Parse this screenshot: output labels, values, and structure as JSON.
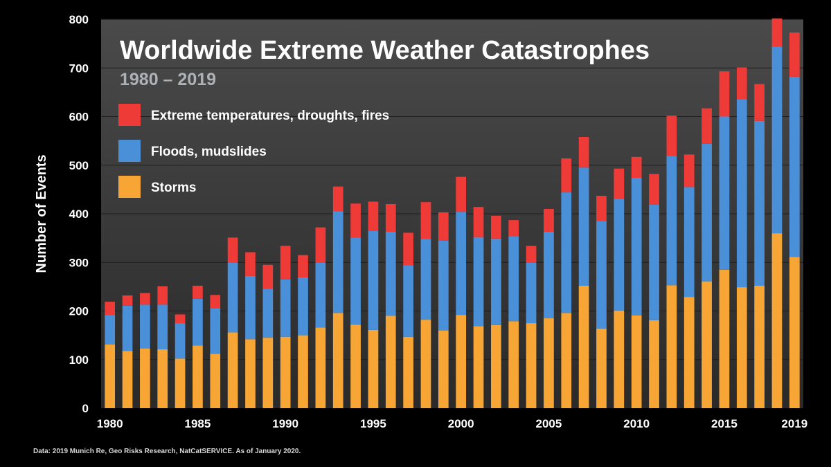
{
  "colors": {
    "background": "#000000",
    "plot_gradient_top": "#4a4a4a",
    "plot_gradient_bottom": "#2a2a2a",
    "gridline": "#1e1e1e",
    "storms": "#f7a535",
    "floods": "#4a90d9",
    "extreme": "#ee3b37"
  },
  "source_note": "Data: 2019 Munich Re, Geo Risks Research, NatCatSERVICE. As of January 2020.",
  "chart_data": {
    "type": "bar",
    "stacked": true,
    "title": "Worldwide Extreme Weather Catastrophes",
    "subtitle": "1980 – 2019",
    "xlabel": "",
    "ylabel": "Number of Events",
    "ylim": [
      0,
      800
    ],
    "yticks": [
      0,
      100,
      200,
      300,
      400,
      500,
      600,
      700,
      800
    ],
    "xtick_labels": [
      "1980",
      "1985",
      "1990",
      "1995",
      "2000",
      "2005",
      "2010",
      "2015",
      "2019"
    ],
    "grid": true,
    "legend_position": "top-left",
    "categories": [
      "1980",
      "1981",
      "1982",
      "1983",
      "1984",
      "1985",
      "1986",
      "1987",
      "1988",
      "1989",
      "1990",
      "1991",
      "1992",
      "1993",
      "1994",
      "1995",
      "1996",
      "1997",
      "1998",
      "1999",
      "2000",
      "2001",
      "2002",
      "2003",
      "2004",
      "2005",
      "2006",
      "2007",
      "2008",
      "2009",
      "2010",
      "2011",
      "2012",
      "2013",
      "2014",
      "2015",
      "2016",
      "2017",
      "2018",
      "2019"
    ],
    "series": [
      {
        "name": "Storms",
        "color_key": "storms",
        "values": [
          131,
          118,
          123,
          121,
          102,
          129,
          112,
          156,
          142,
          145,
          147,
          150,
          166,
          196,
          172,
          161,
          190,
          147,
          182,
          160,
          192,
          169,
          171,
          179,
          175,
          185,
          196,
          252,
          164,
          201,
          191,
          181,
          253,
          229,
          261,
          285,
          249,
          252,
          360,
          311
        ]
      },
      {
        "name": "Floods, mudslides",
        "color_key": "floods",
        "values": [
          61,
          93,
          90,
          92,
          73,
          96,
          94,
          144,
          130,
          101,
          118,
          119,
          134,
          209,
          179,
          204,
          173,
          147,
          166,
          185,
          212,
          183,
          178,
          175,
          125,
          178,
          248,
          243,
          221,
          230,
          283,
          238,
          266,
          226,
          283,
          315,
          387,
          339,
          384,
          371
        ]
      },
      {
        "name": "Extreme temperatures, droughts, fires",
        "color_key": "extreme",
        "values": [
          27,
          21,
          24,
          38,
          18,
          27,
          27,
          51,
          49,
          49,
          69,
          46,
          72,
          51,
          70,
          60,
          57,
          67,
          76,
          58,
          72,
          62,
          47,
          33,
          34,
          47,
          70,
          63,
          52,
          62,
          43,
          63,
          83,
          67,
          73,
          93,
          65,
          76,
          58,
          91
        ]
      }
    ]
  }
}
